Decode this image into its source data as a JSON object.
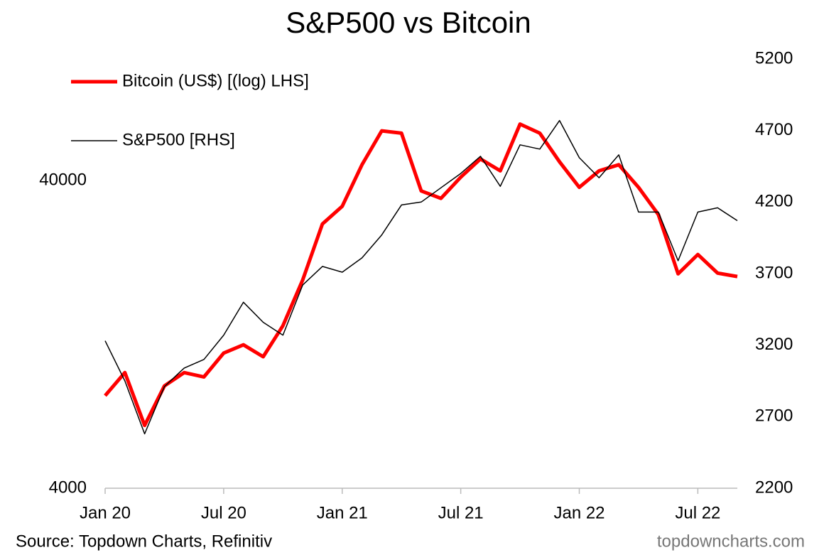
{
  "chart_data": {
    "type": "line",
    "title": "S&P500 vs Bitcoin",
    "categories": [
      "Jan 20",
      null,
      null,
      null,
      null,
      null,
      "Jul 20",
      null,
      null,
      null,
      null,
      null,
      "Jan 21",
      null,
      null,
      null,
      null,
      null,
      "Jul 21",
      null,
      null,
      null,
      null,
      null,
      "Jan 22",
      null,
      null,
      null,
      null,
      null,
      "Jul 22",
      null,
      null
    ],
    "series": [
      {
        "name": "Bitcoin (US$) [(log) LHS]",
        "color": "#ff0000",
        "axis": "y",
        "values": [
          8000,
          9500,
          6400,
          8600,
          9500,
          9200,
          11000,
          11700,
          10700,
          13500,
          19000,
          28900,
          33000,
          45000,
          58000,
          57000,
          37000,
          35000,
          41000,
          47000,
          43000,
          61000,
          57000,
          46000,
          38000,
          43000,
          45000,
          38000,
          31000,
          19900,
          23000,
          20000,
          19500
        ]
      },
      {
        "name": "S&P500 [RHS]",
        "color": "#000000",
        "axis": "y2",
        "values": [
          3230,
          2950,
          2580,
          2910,
          3040,
          3100,
          3270,
          3500,
          3360,
          3270,
          3620,
          3750,
          3710,
          3810,
          3970,
          4180,
          4200,
          4300,
          4400,
          4520,
          4310,
          4600,
          4570,
          4770,
          4510,
          4370,
          4530,
          4130,
          4130,
          3790,
          4130,
          4160,
          4070
        ]
      }
    ],
    "yscale": "log",
    "ylim": [
      4000,
      99300
    ],
    "yticks": [
      4000,
      40000
    ],
    "y2lim": [
      2200,
      5200
    ],
    "y2ticks": [
      2200,
      2700,
      3200,
      3700,
      4200,
      4700,
      5200
    ],
    "legend": "top-left",
    "source": "Source: Topdown Charts, Refinitiv",
    "website": "topdowncharts.com"
  }
}
